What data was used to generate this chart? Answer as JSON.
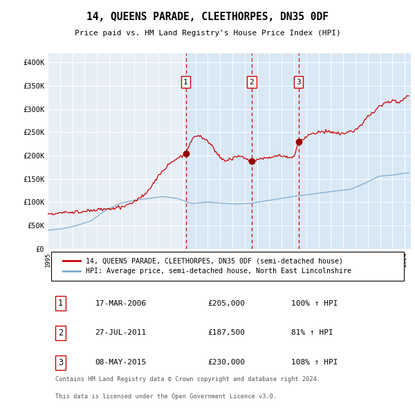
{
  "title": "14, QUEENS PARADE, CLEETHORPES, DN35 0DF",
  "subtitle": "Price paid vs. HM Land Registry's House Price Index (HPI)",
  "legend_line1": "14, QUEENS PARADE, CLEETHORPES, DN35 0DF (semi-detached house)",
  "legend_line2": "HPI: Average price, semi-detached house, North East Lincolnshire",
  "footer1": "Contains HM Land Registry data © Crown copyright and database right 2024.",
  "footer2": "This data is licensed under the Open Government Licence v3.0.",
  "transactions": [
    {
      "label": "1",
      "date": "17-MAR-2006",
      "price": 205000,
      "pct": "100%",
      "dir": "↑",
      "x_year": 2006.21
    },
    {
      "label": "2",
      "date": "27-JUL-2011",
      "price": 187500,
      "pct": "81%",
      "dir": "↑",
      "x_year": 2011.57
    },
    {
      "label": "3",
      "date": "08-MAY-2015",
      "price": 230000,
      "pct": "108%",
      "dir": "↑",
      "x_year": 2015.37
    }
  ],
  "price_color": "#cc0000",
  "hpi_color": "#7faacc",
  "vline_color": "#cc0000",
  "shade_color": "#d8e8f5",
  "plot_bg": "#e8eef5",
  "ylim": [
    0,
    420000
  ],
  "yticks": [
    0,
    50000,
    100000,
    150000,
    200000,
    250000,
    300000,
    350000,
    400000
  ],
  "xlim_start": 1995.0,
  "xlim_end": 2024.5
}
